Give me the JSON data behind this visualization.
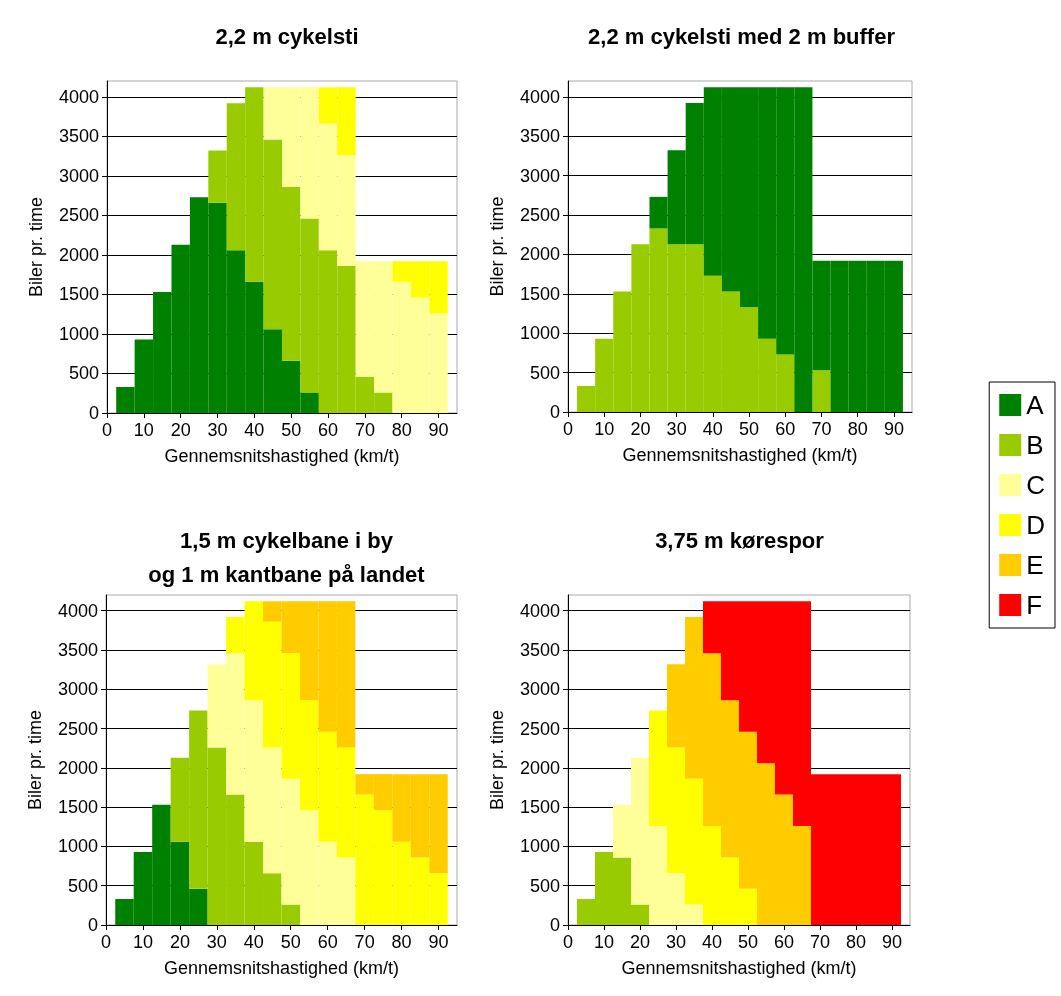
{
  "chart_data": [
    {
      "type": "bar",
      "stacked": true,
      "title": "2,2 m cykelsti",
      "xlabel": "Gennemsnitshastighed (km/t)",
      "ylabel": "Biler pr. time",
      "x": [
        5,
        10,
        15,
        20,
        25,
        30,
        35,
        40,
        45,
        50,
        55,
        60,
        65,
        70,
        75,
        80,
        85,
        90
      ],
      "xlim": [
        0,
        95
      ],
      "xticks": [
        0,
        10,
        20,
        30,
        40,
        50,
        60,
        70,
        80,
        90
      ],
      "ylim": [
        0,
        4200
      ],
      "yticks": [
        0,
        500,
        1000,
        1500,
        2000,
        2500,
        3000,
        3500,
        4000
      ],
      "grid": "y",
      "legend": false,
      "series": [
        {
          "color": "#008000",
          "values": [
            330,
            930,
            1530,
            2130,
            2730,
            2660,
            2060,
            1660,
            1060,
            660,
            260,
            null,
            null,
            null,
            null,
            null,
            null,
            null
          ]
        },
        {
          "color": "#99cc00",
          "values": [
            null,
            null,
            null,
            null,
            null,
            660,
            1860,
            2460,
            2400,
            2200,
            2200,
            2060,
            1860,
            460,
            260,
            null,
            null,
            null
          ]
        },
        {
          "color": "#ffff99",
          "values": [
            null,
            null,
            null,
            null,
            null,
            null,
            null,
            null,
            660,
            1260,
            1660,
            1600,
            1400,
            1460,
            1660,
            1660,
            1460,
            1260
          ]
        },
        {
          "color": "#ffff00",
          "values": [
            null,
            null,
            null,
            null,
            null,
            null,
            null,
            null,
            null,
            null,
            null,
            460,
            860,
            null,
            null,
            260,
            460,
            660
          ]
        }
      ]
    },
    {
      "type": "bar",
      "stacked": true,
      "title": "2,2 m cykelsti med 2 m buffer",
      "xlabel": "Gennemsnitshastighed (km/t)",
      "ylabel": "Biler pr. time",
      "x": [
        5,
        10,
        15,
        20,
        25,
        30,
        35,
        40,
        45,
        50,
        55,
        60,
        65,
        70,
        75,
        80,
        85,
        90
      ],
      "xlim": [
        0,
        95
      ],
      "xticks": [
        0,
        10,
        20,
        30,
        40,
        50,
        60,
        70,
        80,
        90
      ],
      "ylim": [
        0,
        4200
      ],
      "yticks": [
        0,
        500,
        1000,
        1500,
        2000,
        2500,
        3000,
        3500,
        4000
      ],
      "grid": "y",
      "legend": false,
      "series": [
        {
          "color": "#99cc00",
          "values": [
            330,
            930,
            1530,
            2130,
            2330,
            2130,
            2130,
            1730,
            1530,
            1330,
            930,
            730,
            null,
            530,
            null,
            null,
            null,
            null
          ]
        },
        {
          "color": "#008000",
          "values": [
            null,
            null,
            null,
            null,
            400,
            1190,
            1790,
            2390,
            2590,
            2790,
            3190,
            3390,
            4120,
            1390,
            1920,
            1920,
            1920,
            1920
          ]
        }
      ]
    },
    {
      "type": "bar",
      "stacked": true,
      "title": "1,5 m cykelbane i by\nog 1 m kantbane på landet",
      "xlabel": "Gennemsnitshastighed (km/t)",
      "ylabel": "Biler pr. time",
      "x": [
        5,
        10,
        15,
        20,
        25,
        30,
        35,
        40,
        45,
        50,
        55,
        60,
        65,
        70,
        75,
        80,
        85,
        90
      ],
      "xlim": [
        0,
        95
      ],
      "xticks": [
        0,
        10,
        20,
        30,
        40,
        50,
        60,
        70,
        80,
        90
      ],
      "ylim": [
        0,
        4200
      ],
      "yticks": [
        0,
        500,
        1000,
        1500,
        2000,
        2500,
        3000,
        3500,
        4000
      ],
      "grid": "y",
      "legend": "right",
      "series": [
        {
          "name": "A",
          "color": "#008000",
          "values": [
            330,
            930,
            1530,
            1060,
            460,
            null,
            null,
            null,
            null,
            null,
            null,
            null,
            null,
            null,
            null,
            null,
            null,
            null
          ]
        },
        {
          "name": "B",
          "color": "#99cc00",
          "values": [
            null,
            null,
            null,
            1070,
            2270,
            2260,
            1660,
            1060,
            660,
            260,
            null,
            null,
            null,
            null,
            null,
            null,
            null,
            null
          ]
        },
        {
          "name": "C",
          "color": "#ffff99",
          "values": [
            null,
            null,
            null,
            null,
            null,
            1060,
            1800,
            1800,
            1600,
            1600,
            1460,
            1060,
            860,
            null,
            null,
            null,
            null,
            null
          ]
        },
        {
          "name": "D",
          "color": "#ffff00",
          "values": [
            null,
            null,
            null,
            null,
            null,
            null,
            460,
            1260,
            1600,
            1600,
            1400,
            1400,
            1400,
            1660,
            1460,
            1060,
            860,
            660
          ]
        },
        {
          "name": "E",
          "color": "#ffcc00",
          "values": [
            null,
            null,
            null,
            null,
            null,
            null,
            null,
            null,
            260,
            660,
            1260,
            1660,
            1860,
            260,
            460,
            860,
            1060,
            1260
          ]
        },
        {
          "name": "F",
          "color": "#ff0000",
          "values": [
            null,
            null,
            null,
            null,
            null,
            null,
            null,
            null,
            null,
            null,
            null,
            null,
            null,
            null,
            null,
            null,
            null,
            null
          ]
        }
      ]
    },
    {
      "type": "bar",
      "stacked": true,
      "title": "3,75 m kørespor",
      "xlabel": "Gennemsnitshastighed (km/t)",
      "ylabel": "Biler pr. time",
      "x": [
        5,
        10,
        15,
        20,
        25,
        30,
        35,
        40,
        45,
        50,
        55,
        60,
        65,
        70,
        75,
        80,
        85,
        90
      ],
      "xlim": [
        0,
        95
      ],
      "xticks": [
        0,
        10,
        20,
        30,
        40,
        50,
        60,
        70,
        80,
        90
      ],
      "ylim": [
        0,
        4200
      ],
      "yticks": [
        0,
        500,
        1000,
        1500,
        2000,
        2500,
        3000,
        3500,
        4000
      ],
      "grid": "y",
      "legend": false,
      "series": [
        {
          "color": "#99cc00",
          "values": [
            330,
            930,
            860,
            260,
            null,
            null,
            null,
            null,
            null,
            null,
            null,
            null,
            null,
            null,
            null,
            null,
            null,
            null
          ]
        },
        {
          "color": "#ffff99",
          "values": [
            null,
            null,
            670,
            1870,
            1260,
            660,
            260,
            null,
            null,
            null,
            null,
            null,
            null,
            null,
            null,
            null,
            null,
            null
          ]
        },
        {
          "color": "#ffff00",
          "values": [
            null,
            null,
            null,
            null,
            1470,
            1600,
            1600,
            1260,
            860,
            460,
            null,
            null,
            null,
            null,
            null,
            null,
            null,
            null
          ]
        },
        {
          "color": "#ffcc00",
          "values": [
            null,
            null,
            null,
            null,
            null,
            1060,
            2060,
            2200,
            2000,
            2000,
            2060,
            1660,
            1260,
            null,
            null,
            null,
            null,
            null
          ]
        },
        {
          "color": "#ff0000",
          "values": [
            null,
            null,
            null,
            null,
            null,
            null,
            null,
            660,
            1260,
            1660,
            2060,
            2460,
            2860,
            1920,
            1920,
            1920,
            1920,
            1920
          ]
        }
      ]
    }
  ]
}
